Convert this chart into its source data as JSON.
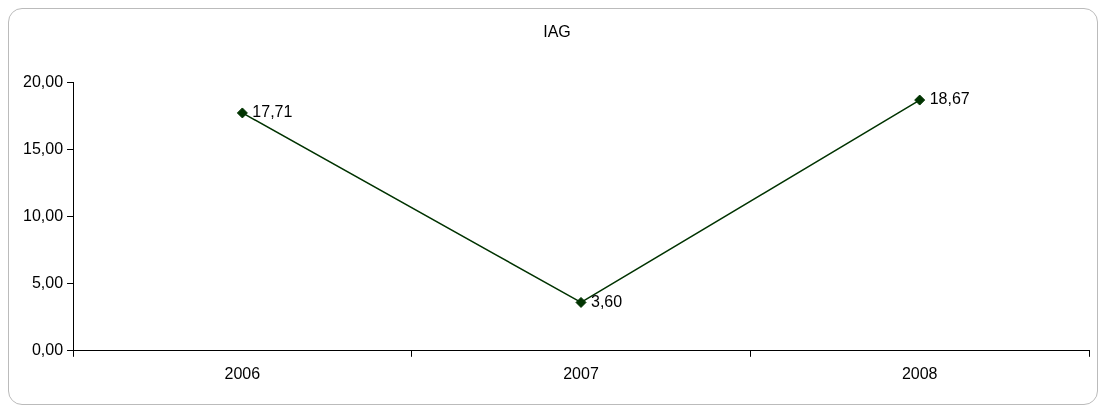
{
  "chart_data": {
    "type": "line",
    "title": "IAG",
    "categories": [
      "2006",
      "2007",
      "2008"
    ],
    "series": [
      {
        "color": "#003300",
        "values": [
          17.71,
          3.6,
          18.67
        ],
        "value_labels": [
          "17,71",
          "3,60",
          "18,67"
        ]
      }
    ],
    "ylim": [
      0,
      20
    ],
    "yticks": [
      {
        "value": 0,
        "label": "0,00"
      },
      {
        "value": 5,
        "label": "5,00"
      },
      {
        "value": 10,
        "label": "10,00"
      },
      {
        "value": 15,
        "label": "15,00"
      },
      {
        "value": 20,
        "label": "20,00"
      }
    ],
    "grid": false,
    "legend": false,
    "marker": "diamond",
    "line_style": "solid"
  }
}
